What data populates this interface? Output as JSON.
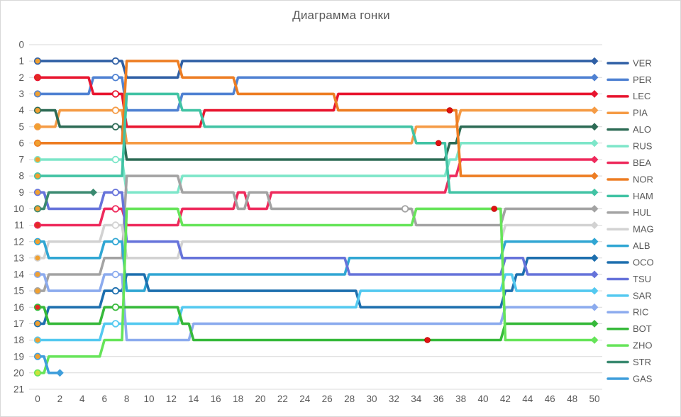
{
  "title": "Диаграмма гонки",
  "chart_data": {
    "type": "line",
    "subtype": "bump-race-positions",
    "title": "Диаграмма гонки",
    "xlabel": "",
    "ylabel": "",
    "xlim": [
      0,
      50
    ],
    "ylim": [
      0,
      21
    ],
    "x_ticks": [
      0,
      2,
      4,
      6,
      8,
      10,
      12,
      14,
      16,
      18,
      20,
      22,
      24,
      26,
      28,
      30,
      32,
      34,
      36,
      38,
      40,
      42,
      44,
      46,
      48,
      50
    ],
    "y_ticks": [
      0,
      1,
      2,
      3,
      4,
      5,
      6,
      7,
      8,
      9,
      10,
      11,
      12,
      13,
      14,
      15,
      16,
      17,
      18,
      19,
      20,
      21
    ],
    "grid": "horizontal",
    "legend_position": "right",
    "legend_order": [
      "VER",
      "PER",
      "LEC",
      "PIA",
      "ALO",
      "RUS",
      "BEA",
      "NOR",
      "HAM",
      "HUL",
      "MAG",
      "ALB",
      "OCO",
      "TSU",
      "SAR",
      "RIC",
      "BOT",
      "ZHO",
      "STR",
      "GAS"
    ],
    "colors": {
      "grid": "#d9d9d9",
      "axis_text": "#595959",
      "title_text": "#595959",
      "pit_sc_fill": "#ffffff",
      "pit_dot": "#e01212",
      "start_default": "#f0a030",
      "start_soft": "#e32a22",
      "start_zho": "#c9e23c"
    },
    "series": [
      {
        "code": "VER",
        "color": "#2f5fa5",
        "start_marker": "#f0a030",
        "positions": [
          1,
          1,
          1,
          1,
          1,
          1,
          1,
          1,
          2,
          2,
          2,
          2,
          2,
          1,
          1,
          1,
          1,
          1,
          1,
          1,
          1,
          1,
          1,
          1,
          1,
          1,
          1,
          1,
          1,
          1,
          1,
          1,
          1,
          1,
          1,
          1,
          1,
          1,
          1,
          1,
          1,
          1,
          1,
          1,
          1,
          1,
          1,
          1,
          1,
          1,
          1
        ]
      },
      {
        "code": "PER",
        "color": "#4f81d2",
        "start_marker": "#f0a030",
        "positions": [
          3,
          3,
          3,
          3,
          3,
          2,
          2,
          2,
          4,
          4,
          4,
          4,
          4,
          3,
          3,
          3,
          3,
          3,
          2,
          2,
          2,
          2,
          2,
          2,
          2,
          2,
          2,
          2,
          2,
          2,
          2,
          2,
          2,
          2,
          2,
          2,
          2,
          2,
          2,
          2,
          2,
          2,
          2,
          2,
          2,
          2,
          2,
          2,
          2,
          2,
          2
        ]
      },
      {
        "code": "LEC",
        "color": "#e8152f",
        "start_marker": "#e32a22",
        "positions": [
          2,
          2,
          2,
          2,
          2,
          3,
          3,
          3,
          5,
          5,
          5,
          5,
          5,
          5,
          5,
          4,
          4,
          4,
          4,
          4,
          4,
          4,
          4,
          4,
          4,
          4,
          4,
          3,
          3,
          3,
          3,
          3,
          3,
          3,
          3,
          3,
          3,
          3,
          3,
          3,
          3,
          3,
          3,
          3,
          3,
          3,
          3,
          3,
          3,
          3,
          3
        ]
      },
      {
        "code": "PIA",
        "color": "#f59b45",
        "start_marker": "#f0a030",
        "positions": [
          5,
          5,
          4,
          4,
          4,
          4,
          4,
          4,
          6,
          6,
          6,
          6,
          6,
          6,
          6,
          6,
          6,
          6,
          6,
          6,
          6,
          6,
          6,
          6,
          6,
          6,
          6,
          6,
          6,
          6,
          6,
          6,
          6,
          6,
          5,
          5,
          5,
          5,
          4,
          4,
          4,
          4,
          4,
          4,
          4,
          4,
          4,
          4,
          4,
          4,
          4
        ]
      },
      {
        "code": "ALO",
        "color": "#2d6b55",
        "start_marker": "#f0a030",
        "positions": [
          4,
          4,
          5,
          5,
          5,
          5,
          5,
          5,
          7,
          7,
          7,
          7,
          7,
          7,
          7,
          7,
          7,
          7,
          7,
          7,
          7,
          7,
          7,
          7,
          7,
          7,
          7,
          7,
          7,
          7,
          7,
          7,
          7,
          7,
          7,
          7,
          7,
          6,
          5,
          5,
          5,
          5,
          5,
          5,
          5,
          5,
          5,
          5,
          5,
          5,
          5
        ]
      },
      {
        "code": "RUS",
        "color": "#7de6c9",
        "start_marker": "#f0a030",
        "positions": [
          7,
          7,
          7,
          7,
          7,
          7,
          7,
          7,
          9,
          9,
          9,
          9,
          9,
          8,
          8,
          8,
          8,
          8,
          8,
          8,
          8,
          8,
          8,
          8,
          8,
          8,
          8,
          8,
          8,
          8,
          8,
          8,
          8,
          8,
          8,
          8,
          8,
          7,
          6,
          6,
          6,
          6,
          6,
          6,
          6,
          6,
          6,
          6,
          6,
          6,
          6
        ]
      },
      {
        "code": "BEA",
        "color": "#ee2a5c",
        "start_marker": "#e32a22",
        "positions": [
          11,
          11,
          11,
          11,
          11,
          11,
          10,
          10,
          11,
          11,
          11,
          11,
          11,
          10,
          10,
          10,
          10,
          10,
          9,
          10,
          10,
          9,
          9,
          9,
          9,
          9,
          9,
          9,
          9,
          9,
          9,
          9,
          9,
          9,
          9,
          9,
          9,
          8,
          7,
          7,
          7,
          7,
          7,
          7,
          7,
          7,
          7,
          7,
          7,
          7,
          7
        ]
      },
      {
        "code": "NOR",
        "color": "#ed7d23",
        "start_marker": "#f0a030",
        "positions": [
          6,
          6,
          6,
          6,
          6,
          6,
          6,
          6,
          1,
          1,
          1,
          1,
          1,
          2,
          2,
          2,
          2,
          2,
          3,
          3,
          3,
          3,
          3,
          3,
          3,
          3,
          3,
          4,
          4,
          4,
          4,
          4,
          4,
          4,
          4,
          4,
          4,
          4,
          8,
          8,
          8,
          8,
          8,
          8,
          8,
          8,
          8,
          8,
          8,
          8,
          8
        ]
      },
      {
        "code": "HAM",
        "color": "#41c3a4",
        "start_marker": "#f0a030",
        "positions": [
          8,
          8,
          8,
          8,
          8,
          8,
          8,
          8,
          3,
          3,
          3,
          3,
          3,
          4,
          4,
          5,
          5,
          5,
          5,
          5,
          5,
          5,
          5,
          5,
          5,
          5,
          5,
          5,
          5,
          5,
          5,
          5,
          5,
          5,
          6,
          6,
          6,
          9,
          9,
          9,
          9,
          9,
          9,
          9,
          9,
          9,
          9,
          9,
          9,
          9,
          9
        ]
      },
      {
        "code": "HUL",
        "color": "#a3a3a3",
        "start_marker": "#f0a030",
        "positions": [
          15,
          14,
          14,
          14,
          14,
          14,
          13,
          13,
          8,
          8,
          8,
          8,
          8,
          9,
          9,
          9,
          9,
          9,
          10,
          9,
          9,
          10,
          10,
          10,
          10,
          10,
          10,
          10,
          10,
          10,
          10,
          10,
          10,
          10,
          11,
          11,
          11,
          11,
          11,
          11,
          11,
          11,
          10,
          10,
          10,
          10,
          10,
          10,
          10,
          10,
          10
        ]
      },
      {
        "code": "MAG",
        "color": "#d2d2d2",
        "start_marker": "#f0a030",
        "positions": [
          13,
          12,
          12,
          12,
          12,
          12,
          11,
          11,
          13,
          13,
          13,
          13,
          13,
          12,
          12,
          12,
          12,
          12,
          12,
          12,
          12,
          12,
          12,
          12,
          12,
          12,
          12,
          12,
          12,
          12,
          12,
          12,
          12,
          12,
          12,
          12,
          12,
          12,
          12,
          12,
          12,
          12,
          11,
          11,
          11,
          11,
          11,
          11,
          11,
          11,
          11
        ]
      },
      {
        "code": "ALB",
        "color": "#30a6d3",
        "start_marker": "#f0a030",
        "positions": [
          12,
          13,
          13,
          13,
          13,
          13,
          12,
          12,
          15,
          15,
          14,
          14,
          14,
          14,
          14,
          14,
          14,
          14,
          14,
          14,
          14,
          14,
          14,
          14,
          14,
          14,
          14,
          14,
          13,
          13,
          13,
          13,
          13,
          13,
          13,
          13,
          13,
          13,
          13,
          13,
          13,
          13,
          12,
          12,
          12,
          12,
          12,
          12,
          12,
          12,
          12
        ]
      },
      {
        "code": "OCO",
        "color": "#1d6fae",
        "start_marker": "#f0a030",
        "positions": [
          17,
          16,
          16,
          16,
          16,
          16,
          15,
          15,
          14,
          14,
          15,
          15,
          15,
          15,
          15,
          15,
          15,
          15,
          15,
          15,
          15,
          15,
          15,
          15,
          15,
          15,
          15,
          15,
          15,
          16,
          16,
          16,
          16,
          16,
          16,
          16,
          16,
          16,
          16,
          16,
          16,
          16,
          15,
          14,
          13,
          13,
          13,
          13,
          13,
          13,
          13
        ]
      },
      {
        "code": "TSU",
        "color": "#6673da",
        "start_marker": "#f0a030",
        "positions": [
          9,
          10,
          10,
          10,
          10,
          10,
          9,
          9,
          12,
          12,
          12,
          12,
          12,
          13,
          13,
          13,
          13,
          13,
          13,
          13,
          13,
          13,
          13,
          13,
          13,
          13,
          13,
          13,
          14,
          14,
          14,
          14,
          14,
          14,
          14,
          14,
          14,
          14,
          14,
          14,
          14,
          14,
          13,
          13,
          14,
          14,
          14,
          14,
          14,
          14,
          14
        ]
      },
      {
        "code": "SAR",
        "color": "#54c9f0",
        "start_marker": "#f0a030",
        "positions": [
          18,
          18,
          18,
          18,
          18,
          18,
          17,
          17,
          17,
          17,
          17,
          17,
          17,
          16,
          16,
          16,
          16,
          16,
          16,
          16,
          16,
          16,
          16,
          16,
          16,
          16,
          16,
          16,
          16,
          15,
          15,
          15,
          15,
          15,
          15,
          15,
          15,
          15,
          15,
          15,
          15,
          15,
          14,
          15,
          15,
          15,
          15,
          15,
          15,
          15,
          15
        ]
      },
      {
        "code": "RIC",
        "color": "#8cabee",
        "start_marker": "#f0a030",
        "positions": [
          14,
          15,
          15,
          15,
          15,
          15,
          14,
          14,
          18,
          18,
          18,
          18,
          18,
          18,
          17,
          17,
          17,
          17,
          17,
          17,
          17,
          17,
          17,
          17,
          17,
          17,
          17,
          17,
          17,
          17,
          17,
          17,
          17,
          17,
          17,
          17,
          17,
          17,
          17,
          17,
          17,
          17,
          16,
          16,
          16,
          16,
          16,
          16,
          16,
          16,
          16
        ]
      },
      {
        "code": "BOT",
        "color": "#36b93a",
        "start_marker": "#e32a22",
        "positions": [
          16,
          17,
          17,
          17,
          17,
          17,
          16,
          16,
          16,
          16,
          16,
          16,
          16,
          17,
          18,
          18,
          18,
          18,
          18,
          18,
          18,
          18,
          18,
          18,
          18,
          18,
          18,
          18,
          18,
          18,
          18,
          18,
          18,
          18,
          18,
          18,
          18,
          18,
          18,
          18,
          18,
          18,
          17,
          17,
          17,
          17,
          17,
          17,
          17,
          17,
          17
        ]
      },
      {
        "code": "ZHO",
        "color": "#66e459",
        "start_marker": "#c9e23c",
        "positions": [
          20,
          19,
          19,
          19,
          19,
          19,
          18,
          18,
          10,
          10,
          10,
          10,
          10,
          11,
          11,
          11,
          11,
          11,
          11,
          11,
          11,
          11,
          11,
          11,
          11,
          11,
          11,
          11,
          11,
          11,
          11,
          11,
          11,
          11,
          10,
          10,
          10,
          10,
          10,
          10,
          10,
          10,
          18,
          18,
          18,
          18,
          18,
          18,
          18,
          18,
          18
        ]
      },
      {
        "code": "STR",
        "color": "#3a8a70",
        "start_marker": "#f0a030",
        "positions": [
          10,
          9,
          9,
          9,
          9,
          9,
          null,
          null,
          null,
          null,
          null,
          null,
          null,
          null,
          null,
          null,
          null,
          null,
          null,
          null,
          null,
          null,
          null,
          null,
          null,
          null,
          null,
          null,
          null,
          null,
          null,
          null,
          null,
          null,
          null,
          null,
          null,
          null,
          null,
          null,
          null,
          null,
          null,
          null,
          null,
          null,
          null,
          null,
          null,
          null,
          null
        ]
      },
      {
        "code": "GAS",
        "color": "#3f9edb",
        "start_marker": "#f0a030",
        "positions": [
          19,
          20,
          20,
          null,
          null,
          null,
          null,
          null,
          null,
          null,
          null,
          null,
          null,
          null,
          null,
          null,
          null,
          null,
          null,
          null,
          null,
          null,
          null,
          null,
          null,
          null,
          null,
          null,
          null,
          null,
          null,
          null,
          null,
          null,
          null,
          null,
          null,
          null,
          null,
          null,
          null,
          null,
          null,
          null,
          null,
          null,
          null,
          null,
          null,
          null,
          null
        ]
      }
    ],
    "pit_stops_safety_car": [
      {
        "driver": "VER",
        "lap": 7,
        "position": 1
      },
      {
        "driver": "PER",
        "lap": 7,
        "position": 2
      },
      {
        "driver": "LEC",
        "lap": 7,
        "position": 3
      },
      {
        "driver": "PIA",
        "lap": 7,
        "position": 4
      },
      {
        "driver": "ALO",
        "lap": 7,
        "position": 5
      },
      {
        "driver": "RUS",
        "lap": 7,
        "position": 7
      },
      {
        "driver": "TSU",
        "lap": 7,
        "position": 9
      },
      {
        "driver": "BEA",
        "lap": 7,
        "position": 10
      },
      {
        "driver": "MAG",
        "lap": 7,
        "position": 11
      },
      {
        "driver": "ALB",
        "lap": 7,
        "position": 12
      },
      {
        "driver": "RIC",
        "lap": 7,
        "position": 14
      },
      {
        "driver": "OCO",
        "lap": 7,
        "position": 15
      },
      {
        "driver": "BOT",
        "lap": 7,
        "position": 16
      },
      {
        "driver": "SAR",
        "lap": 7,
        "position": 17
      },
      {
        "driver": "HUL",
        "lap": 33,
        "position": 10
      }
    ],
    "pit_stops_green": [
      {
        "driver": "BOT",
        "lap": 35,
        "position": 18
      },
      {
        "driver": "HAM",
        "lap": 36,
        "position": 6
      },
      {
        "driver": "NOR",
        "lap": 37,
        "position": 4
      },
      {
        "driver": "ZHO",
        "lap": 41,
        "position": 10
      }
    ],
    "retirements": [
      {
        "driver": "GAS",
        "lap": 2,
        "position": 20
      },
      {
        "driver": "STR",
        "lap": 5,
        "position": 9
      }
    ]
  }
}
